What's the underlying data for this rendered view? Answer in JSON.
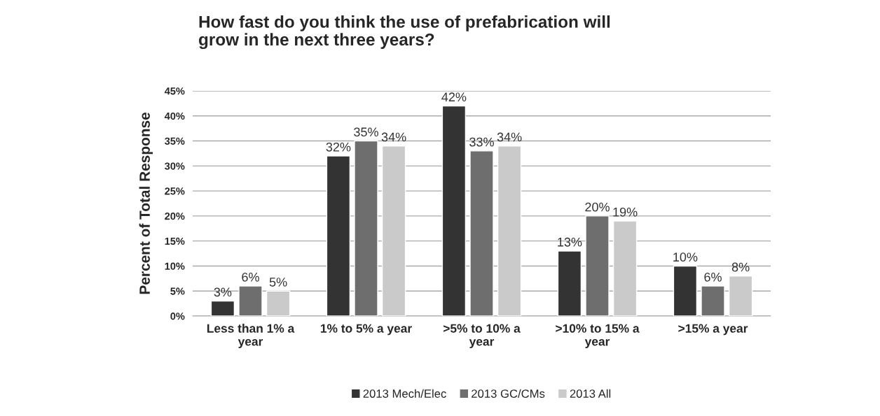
{
  "chart_data": {
    "type": "bar",
    "title": "How fast do you think the use of prefabrication will grow in the next three years?",
    "ylabel": "Percent of Total Response",
    "categories": [
      "Less than 1% a year",
      "1% to 5% a year",
      ">5% to 10% a year",
      ">10% to 15% a year",
      ">15% a year"
    ],
    "series": [
      {
        "name": "2013 Mech/Elec",
        "color": "#333333",
        "values": [
          3,
          32,
          42,
          13,
          10
        ],
        "value_labels": [
          "3%",
          "32%",
          "42%",
          "13%",
          "10%"
        ]
      },
      {
        "name": "2013 GC/CMs",
        "color": "#6e6e6e",
        "values": [
          6,
          35,
          33,
          20,
          6
        ],
        "value_labels": [
          "6%",
          "35%",
          "33%",
          "20%",
          "6%"
        ]
      },
      {
        "name": "2013 All",
        "color": "#cacaca",
        "values": [
          5,
          34,
          34,
          19,
          8
        ],
        "value_labels": [
          "5%",
          "34%",
          "34%",
          "19%",
          "8%"
        ]
      }
    ],
    "ylim": [
      0,
      45
    ],
    "yticks": [
      {
        "value": 0,
        "label": "0%"
      },
      {
        "value": 5,
        "label": "5%"
      },
      {
        "value": 10,
        "label": "10%"
      },
      {
        "value": 15,
        "label": "15%"
      },
      {
        "value": 20,
        "label": "20%"
      },
      {
        "value": 25,
        "label": "25%"
      },
      {
        "value": 30,
        "label": "30%"
      },
      {
        "value": 35,
        "label": "35%"
      },
      {
        "value": 40,
        "label": "40%"
      },
      {
        "value": 45,
        "label": "45%"
      }
    ],
    "grid": "y",
    "legend": "bottom"
  }
}
